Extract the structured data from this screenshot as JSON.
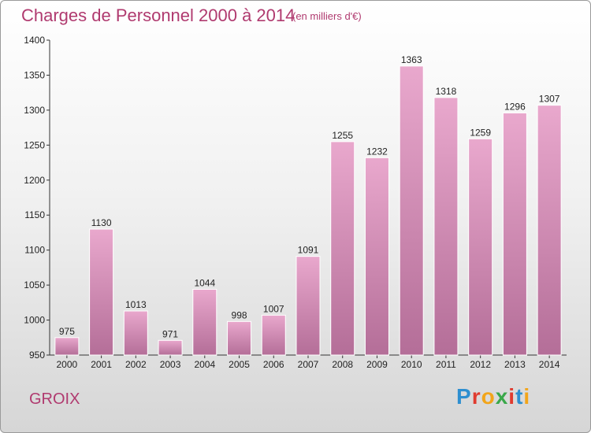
{
  "header": {
    "title": "Charges de Personnel 2000 à 2014",
    "subtitle": "(en milliers d'€)"
  },
  "footer": {
    "place": "GROIX",
    "logo_text": "Proxiti"
  },
  "colors": {
    "title": "#b03a6f",
    "bar_top": "#e9a8cd",
    "bar_bottom": "#b46e98"
  },
  "chart_data": {
    "type": "bar",
    "title": "Charges de Personnel 2000 à 2014",
    "subtitle": "(en milliers d'€)",
    "categories": [
      "2000",
      "2001",
      "2002",
      "2003",
      "2004",
      "2005",
      "2006",
      "2007",
      "2008",
      "2009",
      "2010",
      "2011",
      "2012",
      "2013",
      "2014"
    ],
    "values": [
      975,
      1130,
      1013,
      971,
      1044,
      998,
      1007,
      1091,
      1255,
      1232,
      1363,
      1318,
      1259,
      1296,
      1307
    ],
    "ylim": [
      950,
      1400
    ],
    "yticks": [
      950,
      1000,
      1050,
      1100,
      1150,
      1200,
      1250,
      1300,
      1350,
      1400
    ],
    "xlabel": "",
    "ylabel": "",
    "grid": false,
    "legend": "none"
  }
}
